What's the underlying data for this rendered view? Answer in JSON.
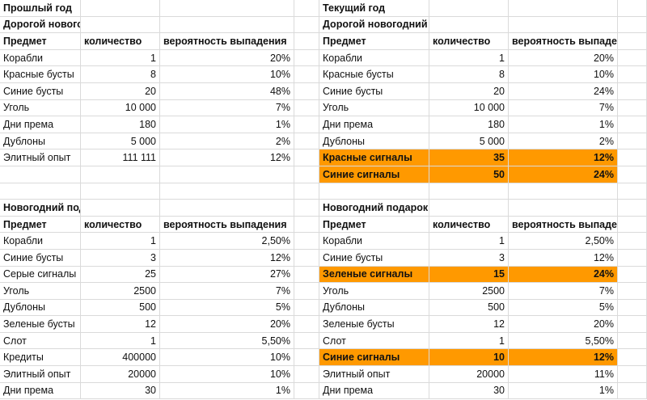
{
  "last_year": {
    "title": "Прошлый год",
    "expensive": {
      "title": "Дорогой новогодний подарок",
      "headers": [
        "Предмет",
        "количество",
        "вероятность выпадения"
      ],
      "rows": [
        [
          "Корабли",
          "1",
          "20%"
        ],
        [
          "Красные бусты",
          "8",
          "10%"
        ],
        [
          "Синие бусты",
          "20",
          "48%"
        ],
        [
          "Уголь",
          "10 000",
          "7%"
        ],
        [
          "Дни према",
          "180",
          "1%"
        ],
        [
          "Дублоны",
          "5 000",
          "2%"
        ],
        [
          "Элитный опыт",
          "111 111",
          "12%"
        ]
      ]
    },
    "poor": {
      "title": "Новогодний подарок для бедных",
      "headers": [
        "Предмет",
        "количество",
        "вероятность выпадения"
      ],
      "rows": [
        [
          "Корабли",
          "1",
          "2,50%"
        ],
        [
          "Синие бусты",
          "3",
          "12%"
        ],
        [
          "Серые сигналы",
          "25",
          "27%"
        ],
        [
          "Уголь",
          "2500",
          "7%"
        ],
        [
          "Дублоны",
          "500",
          "5%"
        ],
        [
          "Зеленые бусты",
          "12",
          "20%"
        ],
        [
          "Слот",
          "1",
          "5,50%"
        ],
        [
          "Кредиты",
          "400000",
          "10%"
        ],
        [
          "Элитный опыт",
          "20000",
          "10%"
        ],
        [
          "Дни према",
          "30",
          "1%"
        ]
      ]
    }
  },
  "current_year": {
    "title": "Текущий год",
    "expensive": {
      "title": "Дорогой новогодний подарок",
      "headers": [
        "Предмет",
        "количество",
        "вероятность выпадения"
      ],
      "rows": [
        [
          "Корабли",
          "1",
          "20%"
        ],
        [
          "Красные бусты",
          "8",
          "10%"
        ],
        [
          "Синие бусты",
          "20",
          "24%"
        ],
        [
          "Уголь",
          "10 000",
          "7%"
        ],
        [
          "Дни према",
          "180",
          "1%"
        ],
        [
          "Дублоны",
          "5 000",
          "2%"
        ],
        [
          "Красные сигналы",
          "35",
          "12%"
        ],
        [
          "Синие сигналы",
          "50",
          "24%"
        ]
      ],
      "highlighted_rows": [
        6,
        7
      ]
    },
    "poor": {
      "title": "Новогодний подарок для бедных",
      "headers": [
        "Предмет",
        "количество",
        "вероятность выпадения"
      ],
      "rows": [
        [
          "Корабли",
          "1",
          "2,50%"
        ],
        [
          "Синие бусты",
          "3",
          "12%"
        ],
        [
          "Зеленые сигналы",
          "15",
          "24%"
        ],
        [
          "Уголь",
          "2500",
          "7%"
        ],
        [
          "Дублоны",
          "500",
          "5%"
        ],
        [
          "Зеленые бусты",
          "12",
          "20%"
        ],
        [
          "Слот",
          "1",
          "5,50%"
        ],
        [
          "Синие сигналы",
          "10",
          "12%"
        ],
        [
          "Элитный опыт",
          "20000",
          "11%"
        ],
        [
          "Дни према",
          "30",
          "1%"
        ]
      ],
      "highlighted_rows": [
        2,
        7
      ]
    }
  },
  "colors": {
    "highlight": "#ff9900",
    "gridline": "#dadada"
  }
}
